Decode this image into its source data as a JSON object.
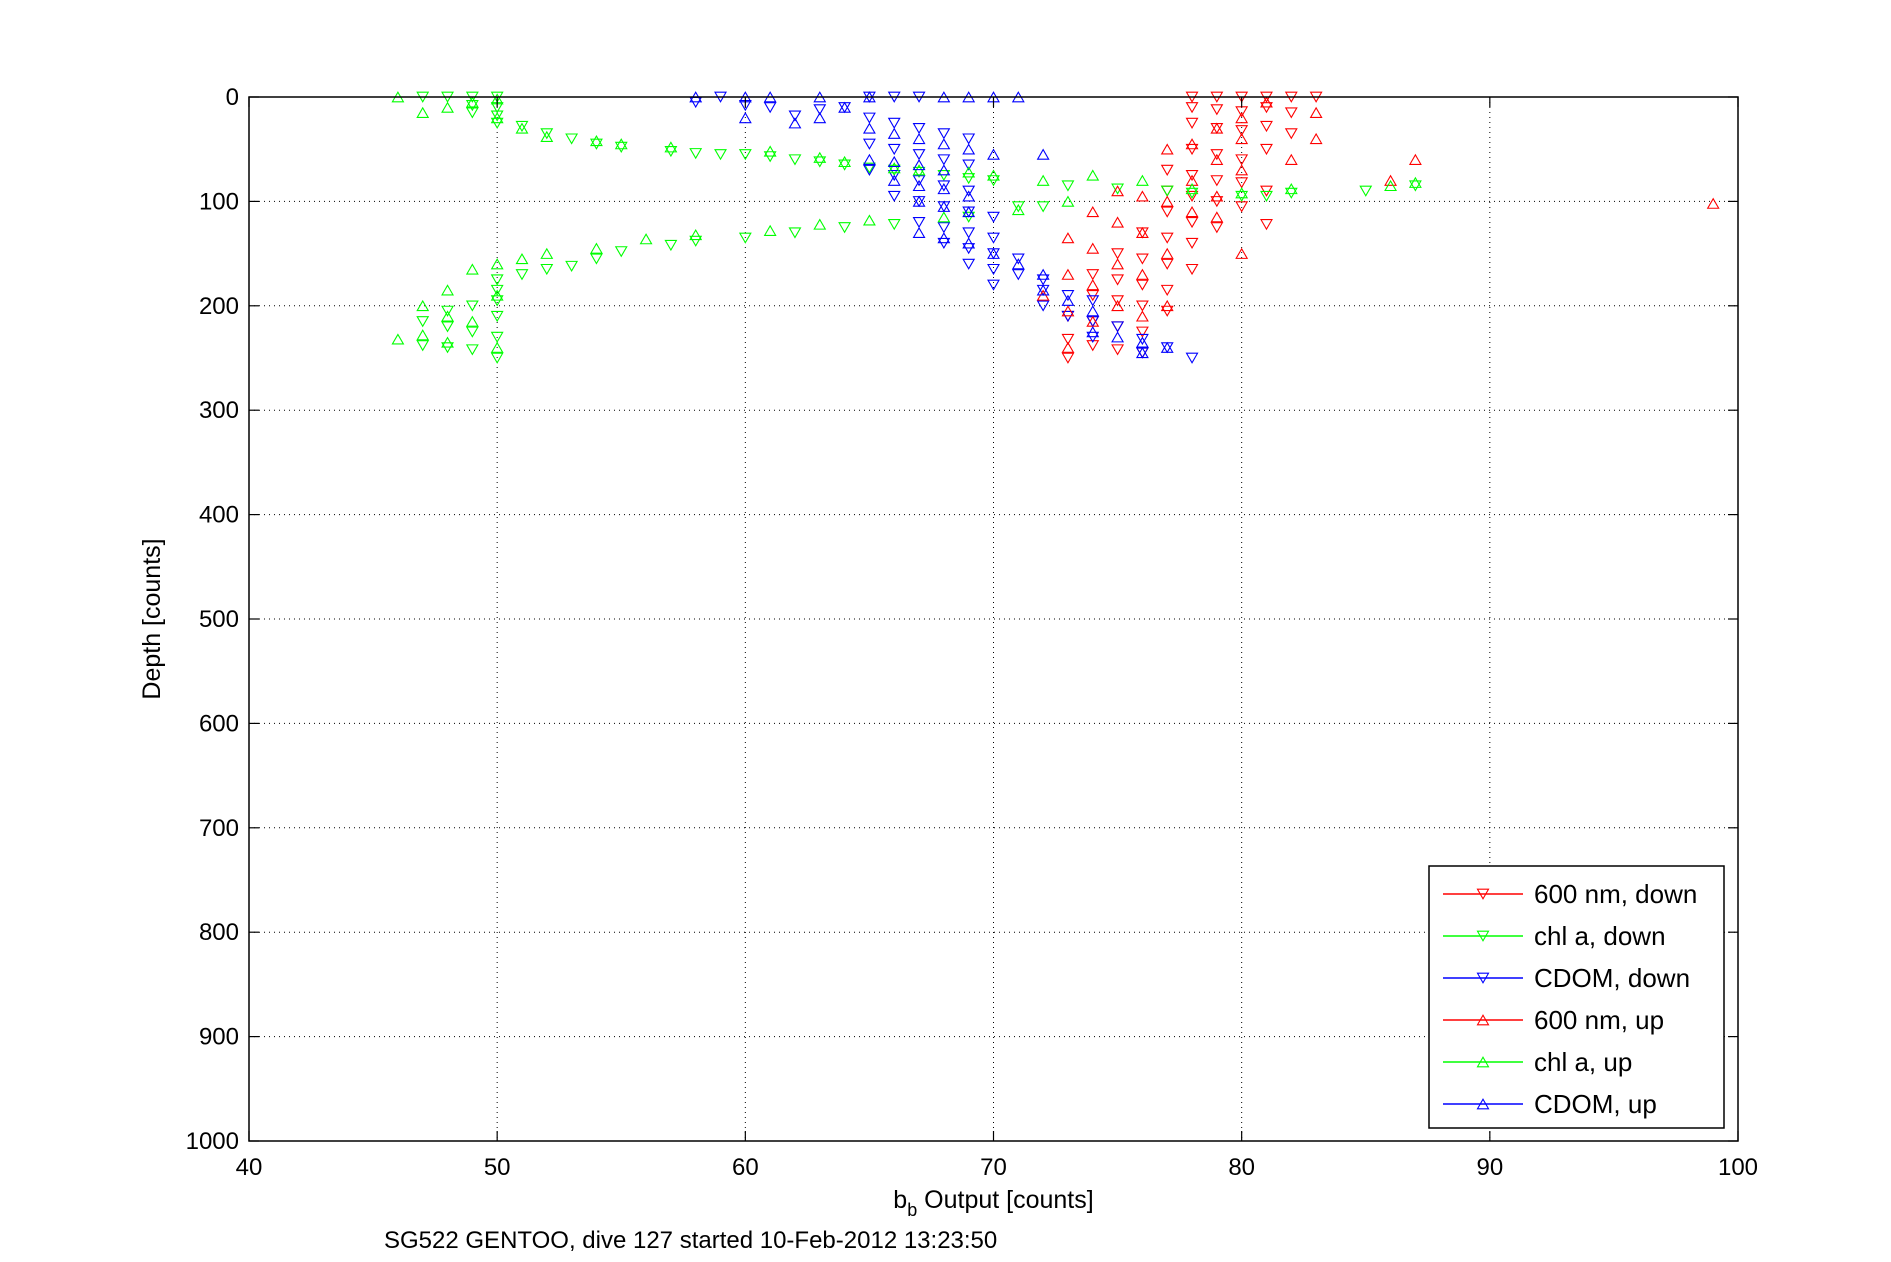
{
  "chart_data": {
    "type": "scatter",
    "title": "",
    "xlabel_main": "b",
    "xlabel_sub": "b",
    "xlabel_rest": " Output [counts]",
    "ylabel": "Depth [counts]",
    "caption": "SG522 GENTOO, dive 127 started 10-Feb-2012 13:23:50",
    "xlim": [
      40,
      100
    ],
    "ylim": [
      0,
      1000
    ],
    "y_reversed": true,
    "grid": true,
    "legend_position": "bottom-right",
    "x_ticks": [
      "40",
      "50",
      "60",
      "70",
      "80",
      "90",
      "100"
    ],
    "y_ticks": [
      "0",
      "100",
      "200",
      "300",
      "400",
      "500",
      "600",
      "700",
      "800",
      "900",
      "1000"
    ],
    "colors": {
      "600nm": "#ff0000",
      "chla": "#00ff00",
      "cdom": "#0000ff"
    },
    "series": [
      {
        "name": "600 nm, down",
        "color": "#ff0000",
        "marker": "triangle-down",
        "points": [
          [
            78,
            0
          ],
          [
            79,
            0
          ],
          [
            80,
            0
          ],
          [
            81,
            0
          ],
          [
            82,
            0
          ],
          [
            83,
            0
          ],
          [
            78,
            10
          ],
          [
            79,
            12
          ],
          [
            80,
            14
          ],
          [
            81,
            10
          ],
          [
            82,
            15
          ],
          [
            78,
            25
          ],
          [
            79,
            30
          ],
          [
            80,
            32
          ],
          [
            81,
            28
          ],
          [
            82,
            35
          ],
          [
            78,
            50
          ],
          [
            79,
            55
          ],
          [
            80,
            60
          ],
          [
            81,
            50
          ],
          [
            77,
            70
          ],
          [
            78,
            75
          ],
          [
            79,
            80
          ],
          [
            80,
            82
          ],
          [
            81,
            90
          ],
          [
            77,
            90
          ],
          [
            78,
            95
          ],
          [
            79,
            100
          ],
          [
            80,
            105
          ],
          [
            77,
            110
          ],
          [
            78,
            120
          ],
          [
            79,
            125
          ],
          [
            81,
            122
          ],
          [
            76,
            130
          ],
          [
            77,
            135
          ],
          [
            78,
            140
          ],
          [
            75,
            150
          ],
          [
            76,
            155
          ],
          [
            77,
            160
          ],
          [
            78,
            165
          ],
          [
            74,
            170
          ],
          [
            75,
            175
          ],
          [
            76,
            180
          ],
          [
            77,
            185
          ],
          [
            74,
            190
          ],
          [
            75,
            195
          ],
          [
            76,
            200
          ],
          [
            77,
            205
          ],
          [
            73,
            210
          ],
          [
            74,
            215
          ],
          [
            75,
            220
          ],
          [
            76,
            225
          ],
          [
            73,
            232
          ],
          [
            74,
            238
          ],
          [
            75,
            242
          ],
          [
            73,
            250
          ],
          [
            76,
            245
          ]
        ]
      },
      {
        "name": "chl a, down",
        "color": "#00ff00",
        "marker": "triangle-down",
        "points": [
          [
            47,
            0
          ],
          [
            48,
            0
          ],
          [
            49,
            0
          ],
          [
            50,
            0
          ],
          [
            49,
            8
          ],
          [
            50,
            10
          ],
          [
            49,
            15
          ],
          [
            50,
            18
          ],
          [
            50,
            25
          ],
          [
            51,
            28
          ],
          [
            52,
            35
          ],
          [
            53,
            40
          ],
          [
            54,
            45
          ],
          [
            55,
            48
          ],
          [
            57,
            52
          ],
          [
            58,
            54
          ],
          [
            59,
            55
          ],
          [
            60,
            55
          ],
          [
            61,
            57
          ],
          [
            62,
            60
          ],
          [
            63,
            62
          ],
          [
            64,
            65
          ],
          [
            65,
            68
          ],
          [
            66,
            70
          ],
          [
            67,
            72
          ],
          [
            68,
            75
          ],
          [
            69,
            78
          ],
          [
            70,
            80
          ],
          [
            73,
            85
          ],
          [
            75,
            88
          ],
          [
            77,
            90
          ],
          [
            78,
            92
          ],
          [
            80,
            95
          ],
          [
            81,
            95
          ],
          [
            82,
            92
          ],
          [
            85,
            90
          ],
          [
            87,
            85
          ],
          [
            71,
            105
          ],
          [
            72,
            105
          ],
          [
            69,
            115
          ],
          [
            66,
            122
          ],
          [
            64,
            125
          ],
          [
            62,
            130
          ],
          [
            60,
            135
          ],
          [
            58,
            138
          ],
          [
            57,
            142
          ],
          [
            55,
            148
          ],
          [
            54,
            155
          ],
          [
            53,
            162
          ],
          [
            52,
            165
          ],
          [
            51,
            170
          ],
          [
            50,
            175
          ],
          [
            50,
            185
          ],
          [
            50,
            195
          ],
          [
            49,
            200
          ],
          [
            48,
            205
          ],
          [
            50,
            210
          ],
          [
            47,
            215
          ],
          [
            48,
            220
          ],
          [
            49,
            225
          ],
          [
            50,
            230
          ],
          [
            47,
            238
          ],
          [
            48,
            240
          ],
          [
            49,
            242
          ],
          [
            50,
            250
          ]
        ]
      },
      {
        "name": "CDOM, down",
        "color": "#0000ff",
        "marker": "triangle-down",
        "points": [
          [
            58,
            5
          ],
          [
            59,
            0
          ],
          [
            60,
            8
          ],
          [
            61,
            10
          ],
          [
            62,
            18
          ],
          [
            63,
            12
          ],
          [
            64,
            10
          ],
          [
            65,
            0
          ],
          [
            66,
            0
          ],
          [
            67,
            0
          ],
          [
            65,
            20
          ],
          [
            66,
            25
          ],
          [
            67,
            30
          ],
          [
            68,
            35
          ],
          [
            69,
            40
          ],
          [
            65,
            45
          ],
          [
            66,
            50
          ],
          [
            67,
            55
          ],
          [
            68,
            60
          ],
          [
            69,
            65
          ],
          [
            65,
            70
          ],
          [
            66,
            75
          ],
          [
            67,
            80
          ],
          [
            68,
            85
          ],
          [
            69,
            90
          ],
          [
            66,
            95
          ],
          [
            67,
            100
          ],
          [
            68,
            105
          ],
          [
            69,
            110
          ],
          [
            70,
            115
          ],
          [
            67,
            120
          ],
          [
            68,
            125
          ],
          [
            69,
            130
          ],
          [
            70,
            135
          ],
          [
            68,
            140
          ],
          [
            69,
            145
          ],
          [
            70,
            150
          ],
          [
            71,
            155
          ],
          [
            69,
            160
          ],
          [
            70,
            165
          ],
          [
            71,
            170
          ],
          [
            72,
            175
          ],
          [
            70,
            180
          ],
          [
            72,
            185
          ],
          [
            73,
            190
          ],
          [
            74,
            195
          ],
          [
            72,
            200
          ],
          [
            73,
            210
          ],
          [
            74,
            215
          ],
          [
            75,
            220
          ],
          [
            74,
            230
          ],
          [
            76,
            232
          ],
          [
            77,
            240
          ],
          [
            78,
            250
          ],
          [
            76,
            245
          ]
        ]
      },
      {
        "name": "600 nm, up",
        "color": "#ff0000",
        "marker": "triangle-up",
        "points": [
          [
            99,
            102
          ],
          [
            87,
            60
          ],
          [
            86,
            80
          ],
          [
            83,
            40
          ],
          [
            83,
            15
          ],
          [
            82,
            60
          ],
          [
            81,
            5
          ],
          [
            80,
            20
          ],
          [
            80,
            40
          ],
          [
            80,
            70
          ],
          [
            80,
            150
          ],
          [
            79,
            30
          ],
          [
            79,
            60
          ],
          [
            79,
            95
          ],
          [
            79,
            115
          ],
          [
            78,
            45
          ],
          [
            78,
            80
          ],
          [
            78,
            110
          ],
          [
            77,
            50
          ],
          [
            77,
            100
          ],
          [
            77,
            150
          ],
          [
            77,
            200
          ],
          [
            76,
            95
          ],
          [
            76,
            130
          ],
          [
            76,
            170
          ],
          [
            76,
            210
          ],
          [
            75,
            90
          ],
          [
            75,
            120
          ],
          [
            75,
            160
          ],
          [
            75,
            200
          ],
          [
            74,
            110
          ],
          [
            74,
            145
          ],
          [
            74,
            180
          ],
          [
            74,
            215
          ],
          [
            73,
            135
          ],
          [
            73,
            170
          ],
          [
            73,
            205
          ],
          [
            73,
            240
          ],
          [
            72,
            190
          ]
        ]
      },
      {
        "name": "chl a, up",
        "color": "#00ff00",
        "marker": "triangle-up",
        "points": [
          [
            46,
            0
          ],
          [
            47,
            15
          ],
          [
            48,
            10
          ],
          [
            49,
            5
          ],
          [
            50,
            2
          ],
          [
            50,
            20
          ],
          [
            51,
            30
          ],
          [
            52,
            38
          ],
          [
            54,
            42
          ],
          [
            55,
            45
          ],
          [
            57,
            48
          ],
          [
            61,
            52
          ],
          [
            63,
            58
          ],
          [
            64,
            62
          ],
          [
            66,
            68
          ],
          [
            67,
            70
          ],
          [
            69,
            72
          ],
          [
            70,
            75
          ],
          [
            72,
            80
          ],
          [
            74,
            75
          ],
          [
            76,
            80
          ],
          [
            78,
            88
          ],
          [
            80,
            92
          ],
          [
            82,
            88
          ],
          [
            86,
            85
          ],
          [
            87,
            82
          ],
          [
            73,
            100
          ],
          [
            71,
            108
          ],
          [
            68,
            115
          ],
          [
            65,
            118
          ],
          [
            63,
            122
          ],
          [
            61,
            128
          ],
          [
            58,
            132
          ],
          [
            56,
            136
          ],
          [
            54,
            145
          ],
          [
            52,
            150
          ],
          [
            51,
            155
          ],
          [
            50,
            160
          ],
          [
            49,
            165
          ],
          [
            48,
            185
          ],
          [
            50,
            190
          ],
          [
            47,
            200
          ],
          [
            48,
            210
          ],
          [
            49,
            215
          ],
          [
            46,
            232
          ],
          [
            47,
            228
          ],
          [
            48,
            235
          ],
          [
            50,
            240
          ]
        ]
      },
      {
        "name": "CDOM, up",
        "color": "#0000ff",
        "marker": "triangle-up",
        "points": [
          [
            58,
            0
          ],
          [
            60,
            0
          ],
          [
            61,
            0
          ],
          [
            63,
            0
          ],
          [
            65,
            0
          ],
          [
            68,
            0
          ],
          [
            69,
            0
          ],
          [
            70,
            0
          ],
          [
            71,
            0
          ],
          [
            60,
            20
          ],
          [
            62,
            25
          ],
          [
            63,
            20
          ],
          [
            64,
            10
          ],
          [
            65,
            30
          ],
          [
            66,
            35
          ],
          [
            67,
            40
          ],
          [
            68,
            45
          ],
          [
            69,
            50
          ],
          [
            70,
            55
          ],
          [
            72,
            55
          ],
          [
            65,
            60
          ],
          [
            66,
            62
          ],
          [
            67,
            65
          ],
          [
            68,
            70
          ],
          [
            66,
            80
          ],
          [
            67,
            85
          ],
          [
            68,
            88
          ],
          [
            69,
            95
          ],
          [
            67,
            100
          ],
          [
            68,
            105
          ],
          [
            69,
            110
          ],
          [
            67,
            130
          ],
          [
            68,
            135
          ],
          [
            69,
            140
          ],
          [
            70,
            150
          ],
          [
            71,
            160
          ],
          [
            72,
            170
          ],
          [
            72,
            185
          ],
          [
            73,
            195
          ],
          [
            74,
            205
          ],
          [
            74,
            225
          ],
          [
            75,
            230
          ],
          [
            76,
            235
          ],
          [
            77,
            240
          ],
          [
            76,
            245
          ]
        ]
      }
    ],
    "legend": [
      {
        "label": "600 nm, down",
        "color": "#ff0000",
        "marker": "triangle-down"
      },
      {
        "label": "chl a, down",
        "color": "#00ff00",
        "marker": "triangle-down"
      },
      {
        "label": "CDOM, down",
        "color": "#0000ff",
        "marker": "triangle-down"
      },
      {
        "label": "600 nm, up",
        "color": "#ff0000",
        "marker": "triangle-up"
      },
      {
        "label": "chl a, up",
        "color": "#00ff00",
        "marker": "triangle-up"
      },
      {
        "label": "CDOM, up",
        "color": "#0000ff",
        "marker": "triangle-up"
      }
    ]
  }
}
